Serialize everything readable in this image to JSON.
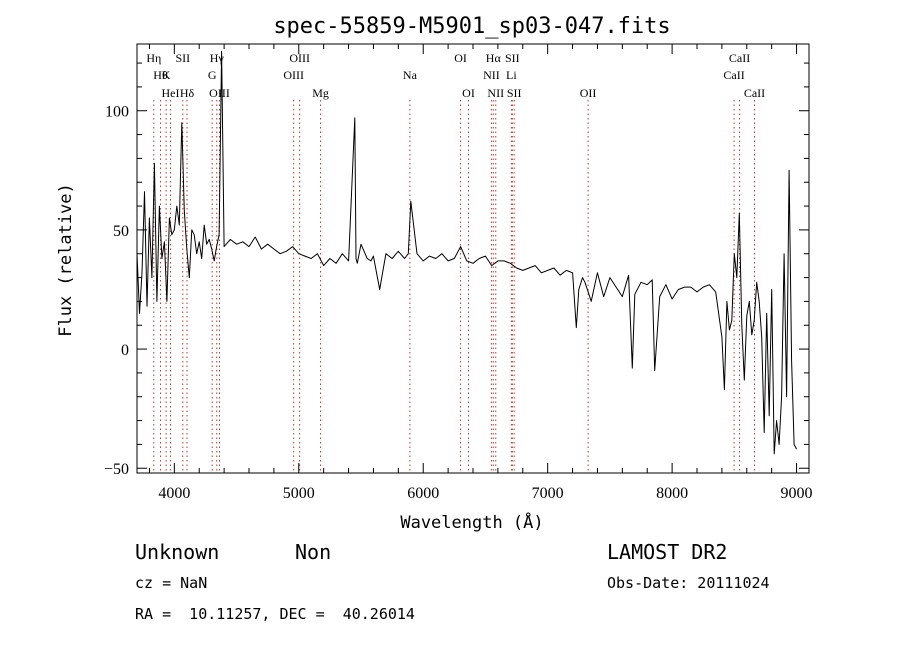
{
  "chart_data": {
    "type": "line",
    "title": "spec-55859-M5901_sp03-047.fits",
    "xlabel": "Wavelength (Å)",
    "ylabel": "Flux (relative)",
    "xlim": [
      3700,
      9100
    ],
    "ylim": [
      -52,
      128
    ],
    "x_ticks": [
      4000,
      5000,
      6000,
      7000,
      8000,
      9000
    ],
    "y_ticks": [
      -50,
      0,
      50,
      100
    ],
    "grid": false,
    "series": [
      {
        "x": [
          3700,
          3720,
          3740,
          3760,
          3780,
          3800,
          3820,
          3840,
          3860,
          3880,
          3900,
          3920,
          3940,
          3960,
          3980,
          4000,
          4020,
          4040,
          4060,
          4080,
          4100,
          4120,
          4140,
          4160,
          4180,
          4200,
          4220,
          4240,
          4260,
          4280,
          4300,
          4320,
          4340,
          4360,
          4380,
          4400,
          4450,
          4500,
          4550,
          4600,
          4650,
          4700,
          4750,
          4800,
          4850,
          4900,
          4950,
          5000,
          5050,
          5100,
          5150,
          5200,
          5250,
          5300,
          5350,
          5400,
          5450,
          5460,
          5470,
          5500,
          5550,
          5580,
          5600,
          5650,
          5700,
          5750,
          5800,
          5850,
          5880,
          5900,
          5950,
          6000,
          6050,
          6100,
          6150,
          6200,
          6250,
          6300,
          6350,
          6400,
          6450,
          6500,
          6550,
          6600,
          6650,
          6700,
          6750,
          6800,
          6850,
          6900,
          6950,
          7000,
          7050,
          7100,
          7150,
          7200,
          7230,
          7250,
          7280,
          7300,
          7350,
          7400,
          7450,
          7500,
          7550,
          7600,
          7650,
          7680,
          7700,
          7750,
          7800,
          7840,
          7860,
          7900,
          7950,
          8000,
          8050,
          8100,
          8150,
          8200,
          8250,
          8300,
          8350,
          8400,
          8420,
          8440,
          8460,
          8480,
          8500,
          8520,
          8540,
          8560,
          8580,
          8600,
          8620,
          8640,
          8660,
          8680,
          8700,
          8720,
          8740,
          8760,
          8780,
          8800,
          8820,
          8840,
          8860,
          8880,
          8900,
          8920,
          8940,
          8960,
          8980,
          9000
        ],
        "values": [
          40,
          15,
          32,
          66,
          18,
          55,
          30,
          78,
          20,
          60,
          38,
          45,
          20,
          55,
          48,
          50,
          60,
          52,
          95,
          58,
          42,
          30,
          50,
          48,
          40,
          45,
          38,
          52,
          44,
          46,
          42,
          37,
          43,
          48,
          125,
          43,
          46,
          44,
          45,
          43,
          47,
          42,
          44,
          42,
          40,
          41,
          43,
          40,
          39,
          38,
          40,
          35,
          38,
          36,
          40,
          37,
          97,
          38,
          36,
          44,
          38,
          37,
          39,
          25,
          40,
          38,
          41,
          38,
          40,
          62,
          40,
          37,
          39,
          38,
          40,
          37,
          38,
          43,
          37,
          36,
          38,
          39,
          35,
          37,
          37,
          36,
          34,
          33,
          34,
          35,
          32,
          33,
          34,
          31,
          33,
          32,
          9,
          25,
          30,
          28,
          20,
          32,
          22,
          30,
          26,
          22,
          31,
          -8,
          23,
          28,
          27,
          29,
          -9,
          22,
          27,
          21,
          25,
          26,
          26,
          24,
          26,
          27,
          24,
          5,
          -17,
          20,
          8,
          12,
          40,
          30,
          57,
          10,
          -13,
          14,
          20,
          6,
          12,
          28,
          20,
          5,
          -35,
          15,
          -28,
          25,
          -44,
          -30,
          -40,
          -20,
          40,
          -20,
          75,
          -5,
          -40,
          -42
        ]
      }
    ],
    "line_markers": [
      {
        "wl": 3835,
        "labels": [
          "Hη"
        ],
        "row": 0
      },
      {
        "wl": 3889,
        "labels": [
          "Hθ"
        ],
        "row": 1
      },
      {
        "wl": 3934,
        "labels": [
          "K"
        ],
        "row": 1
      },
      {
        "wl": 3969,
        "labels": [
          "HeI"
        ],
        "row": 2
      },
      {
        "wl": 4068,
        "labels": [
          "SII"
        ],
        "row": 0
      },
      {
        "wl": 4102,
        "labels": [
          "Hδ"
        ],
        "row": 2
      },
      {
        "wl": 4304,
        "labels": [
          "G"
        ],
        "row": 1
      },
      {
        "wl": 4341,
        "labels": [
          "Hγ"
        ],
        "row": 0
      },
      {
        "wl": 4363,
        "labels": [
          "OIII"
        ],
        "row": 2
      },
      {
        "wl": 4959,
        "labels": [
          "OIII"
        ],
        "row": 1
      },
      {
        "wl": 5007,
        "labels": [
          "OIII"
        ],
        "row": 0
      },
      {
        "wl": 5175,
        "labels": [
          "Mg"
        ],
        "row": 2
      },
      {
        "wl": 5893,
        "labels": [
          "Na"
        ],
        "row": 1
      },
      {
        "wl": 6300,
        "labels": [
          "OI"
        ],
        "row": 0
      },
      {
        "wl": 6364,
        "labels": [
          "OI"
        ],
        "row": 2
      },
      {
        "wl": 6548,
        "labels": [
          "NII"
        ],
        "row": 1
      },
      {
        "wl": 6563,
        "labels": [
          "Hα"
        ],
        "row": 0
      },
      {
        "wl": 6583,
        "labels": [
          "NII"
        ],
        "row": 2
      },
      {
        "wl": 6708,
        "labels": [
          "Li"
        ],
        "row": 1
      },
      {
        "wl": 6716,
        "labels": [
          "SII"
        ],
        "row": 0
      },
      {
        "wl": 6731,
        "labels": [
          "SII"
        ],
        "row": 2
      },
      {
        "wl": 7325,
        "labels": [
          "OII"
        ],
        "row": 2
      },
      {
        "wl": 8498,
        "labels": [
          "CaII"
        ],
        "row": 1
      },
      {
        "wl": 8542,
        "labels": [
          "CaII"
        ],
        "row": 0
      },
      {
        "wl": 8662,
        "labels": [
          "CaII"
        ],
        "row": 2
      }
    ]
  },
  "info": {
    "class": "Unknown",
    "subclass": "Non",
    "survey": "LAMOST DR2",
    "cz": "cz = NaN",
    "obs_date": "Obs-Date: 20111024",
    "coords": "RA =  10.11257, DEC =  40.26014"
  }
}
